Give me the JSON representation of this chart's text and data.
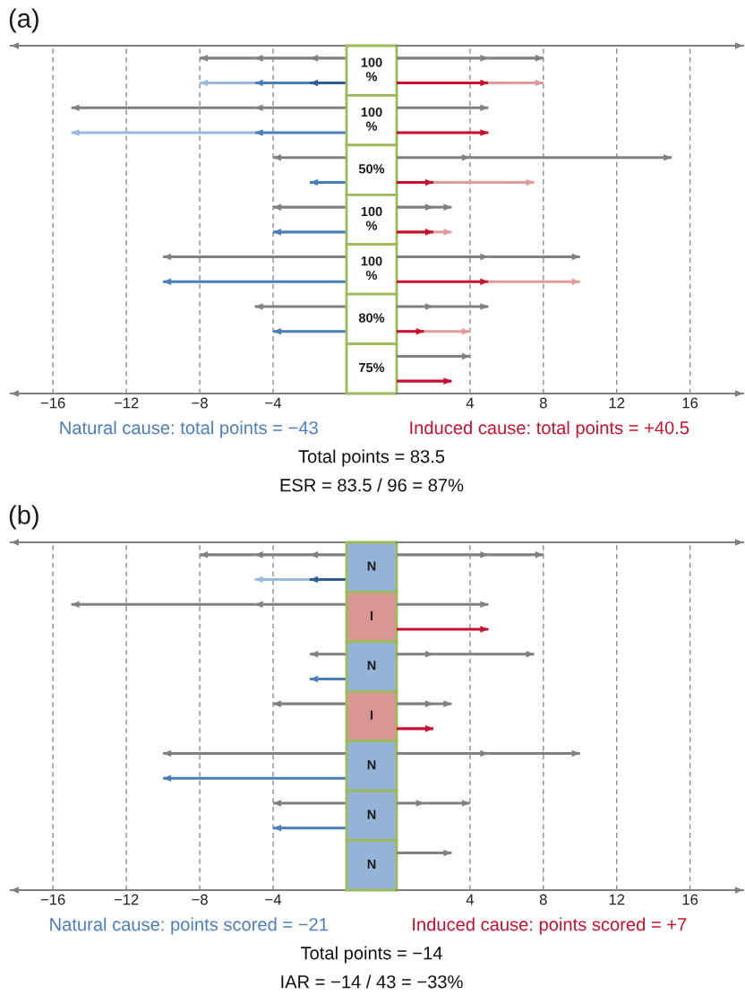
{
  "chart_data": [
    {
      "type": "bar",
      "title": "(a)",
      "orientation": "horizontal",
      "stacked": true,
      "categories": [
        null,
        null,
        null,
        null,
        null,
        null,
        null,
        null,
        null,
        null,
        null,
        null,
        null,
        null
      ],
      "series": [
        {
          "color": "#808080",
          "values": [
            -2,
            null,
            -5,
            null,
            -4,
            null,
            -4,
            null,
            -10,
            null,
            -5,
            null,
            null,
            null
          ]
        },
        {
          "color": "#808080",
          "values": [
            -3,
            null,
            -10,
            null,
            null,
            null,
            null,
            null,
            null,
            null,
            null,
            null,
            null,
            null
          ]
        },
        {
          "color": "#808080",
          "values": [
            -3,
            null,
            null,
            null,
            null,
            null,
            null,
            null,
            null,
            null,
            null,
            null,
            null,
            null
          ]
        },
        {
          "color": "#2e5c98",
          "values": [
            null,
            -2,
            null,
            null,
            null,
            null,
            null,
            null,
            null,
            null,
            null,
            null,
            null,
            null
          ]
        },
        {
          "name": "Natural cause: total points = −43",
          "color": "#4a7ebb",
          "values": [
            null,
            -3,
            null,
            -5,
            null,
            -2,
            null,
            -4,
            null,
            -10,
            null,
            -4,
            null,
            null
          ]
        },
        {
          "color": "#9ab8de",
          "values": [
            null,
            -3,
            null,
            -10,
            null,
            null,
            null,
            null,
            null,
            null,
            null,
            null,
            null,
            null
          ]
        }
      ],
      "xlim": [
        -18.3,
        0
      ],
      "xticks": [
        {
          "value": -16,
          "label": "−16"
        },
        {
          "value": -12,
          "label": "−12"
        },
        {
          "value": -8,
          "label": "−8"
        },
        {
          "value": -4,
          "label": "−4"
        }
      ],
      "grid": "x",
      "legend": "bottom"
    },
    {
      "type": "other",
      "categories": [
        "100\n%",
        "100\n%",
        "50%",
        "100\n%",
        "100\n%",
        "80%",
        "75%"
      ],
      "colors": [
        "#ffffff",
        "#ffffff",
        "#ffffff",
        "#ffffff",
        "#ffffff",
        "#ffffff",
        "#ffffff"
      ],
      "annotations": [
        "Total points = 83.5",
        "ESR = 83.5 / 96 = 87%"
      ]
    },
    {
      "type": "bar",
      "orientation": "horizontal",
      "stacked": true,
      "categories": [
        null,
        null,
        null,
        null,
        null,
        null,
        null,
        null,
        null,
        null,
        null,
        null,
        null,
        null
      ],
      "series": [
        {
          "color": "#808080",
          "values": [
            5,
            null,
            5,
            null,
            4,
            null,
            2,
            null,
            5,
            null,
            2,
            null,
            4,
            null
          ]
        },
        {
          "color": "#808080",
          "values": [
            3,
            null,
            null,
            null,
            11,
            null,
            1,
            null,
            5,
            null,
            3,
            null,
            null,
            null
          ]
        },
        {
          "name": "Induced cause: total points = +40.5",
          "color": "#c8102e",
          "values": [
            null,
            5,
            null,
            5,
            null,
            2,
            null,
            2,
            null,
            5,
            null,
            1.5,
            null,
            3
          ]
        },
        {
          "color": "#e39a9b",
          "values": [
            null,
            3,
            null,
            null,
            null,
            5.5,
            null,
            1,
            null,
            5,
            null,
            2.5,
            null,
            null
          ]
        }
      ],
      "xlim": [
        0,
        18.9
      ],
      "xticks": [
        4,
        8,
        12,
        16
      ],
      "grid": "x",
      "legend": "bottom"
    },
    {
      "type": "bar",
      "title": "(b)",
      "orientation": "horizontal",
      "stacked": true,
      "categories": [
        null,
        null,
        null,
        null,
        null,
        null,
        null,
        null,
        null,
        null,
        null,
        null,
        null,
        null
      ],
      "series": [
        {
          "color": "#808080",
          "values": [
            -2,
            null,
            -5,
            null,
            -2,
            null,
            -4,
            null,
            -10,
            null,
            -4,
            null,
            null,
            null
          ]
        },
        {
          "color": "#808080",
          "values": [
            -3,
            null,
            -10,
            null,
            null,
            null,
            null,
            null,
            null,
            null,
            null,
            null,
            null,
            null
          ]
        },
        {
          "color": "#808080",
          "values": [
            -3,
            null,
            null,
            null,
            null,
            null,
            null,
            null,
            null,
            null,
            null,
            null,
            null,
            null
          ]
        },
        {
          "color": "#2e5c98",
          "values": [
            null,
            -2,
            null,
            null,
            null,
            null,
            null,
            null,
            null,
            null,
            null,
            null,
            null,
            null
          ]
        },
        {
          "name": "Natural cause: points scored = −21",
          "color": "#4a7ebb",
          "values": [
            null,
            null,
            null,
            null,
            null,
            -2,
            null,
            null,
            null,
            -10,
            null,
            -4,
            null,
            null
          ]
        },
        {
          "color": "#9ab8de",
          "values": [
            null,
            -3,
            null,
            null,
            null,
            null,
            null,
            null,
            null,
            null,
            null,
            null,
            null,
            null
          ]
        }
      ],
      "xlim": [
        -18.3,
        0
      ],
      "xticks": [
        {
          "value": -16,
          "label": "−16"
        },
        {
          "value": -12,
          "label": "−12"
        },
        {
          "value": -8,
          "label": "−8"
        },
        {
          "value": -4,
          "label": "−4"
        }
      ],
      "grid": "x",
      "legend": "bottom"
    },
    {
      "type": "other",
      "categories": [
        "N",
        "I",
        "N",
        "I",
        "N",
        "N",
        "N"
      ],
      "colors": [
        "#95b3d7",
        "#d99694",
        "#95b3d7",
        "#d99694",
        "#95b3d7",
        "#95b3d7",
        "#95b3d7"
      ],
      "annotations": [
        "Total points = −14",
        "IAR = −14 / 43 = −33%"
      ]
    },
    {
      "type": "bar",
      "orientation": "horizontal",
      "stacked": true,
      "categories": [
        null,
        null,
        null,
        null,
        null,
        null,
        null,
        null,
        null,
        null,
        null,
        null,
        null,
        null
      ],
      "series": [
        {
          "color": "#808080",
          "values": [
            5,
            null,
            5,
            null,
            2,
            null,
            2,
            null,
            5,
            null,
            1.5,
            null,
            3,
            null
          ]
        },
        {
          "color": "#808080",
          "values": [
            3,
            null,
            null,
            null,
            5.5,
            null,
            1,
            null,
            5,
            null,
            2.5,
            null,
            null,
            null
          ]
        },
        {
          "name": "Induced cause: points scored = +7",
          "color": "#c8102e",
          "values": [
            null,
            null,
            null,
            5,
            null,
            null,
            null,
            2,
            null,
            null,
            null,
            null,
            null,
            null
          ]
        }
      ],
      "xlim": [
        0,
        18.9
      ],
      "xticks": [
        4,
        8,
        12,
        16
      ],
      "grid": "x",
      "legend": "bottom"
    }
  ]
}
